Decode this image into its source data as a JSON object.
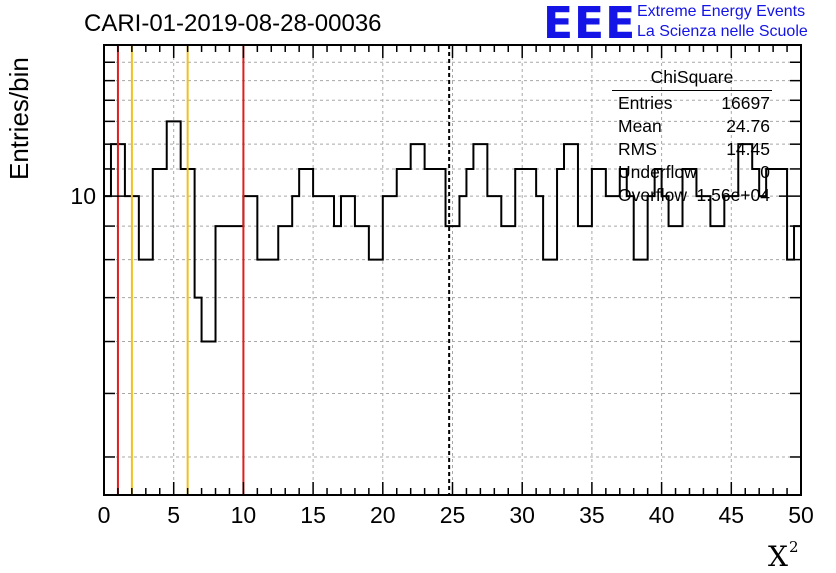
{
  "title": "CARI-01-2019-08-28-00036",
  "logo": {
    "mark": "EEE",
    "line1": "Extreme Energy Events",
    "line2": "La Scienza nelle Scuole"
  },
  "stats": {
    "title": "ChiSquare",
    "rows": [
      {
        "key": "Entries",
        "value": "16697"
      },
      {
        "key": "Mean",
        "value": "24.76"
      },
      {
        "key": "RMS",
        "value": "14.45"
      },
      {
        "key": "Underflow",
        "value": "0"
      },
      {
        "key": "Overflow",
        "value": "1.56e+04"
      }
    ]
  },
  "colors": {
    "red_line": "#e01e1e",
    "yellow_line": "#f0c020",
    "mean_line": "#000000"
  },
  "chart_data": {
    "type": "histogram",
    "ylabel": "Entries/bin",
    "xlabel": "X",
    "xlabel_superscript": "2",
    "xlim": [
      0,
      50
    ],
    "ylim": [
      3.5,
      17
    ],
    "yscale": "log",
    "bin_width": 0.5,
    "x_ticks": [
      "0",
      "5",
      "10",
      "15",
      "20",
      "25",
      "30",
      "35",
      "40",
      "45",
      "50"
    ],
    "y_tick_labels": [
      {
        "value": 10,
        "label": "10"
      }
    ],
    "grid": true,
    "values": [
      10,
      12,
      12,
      10,
      10,
      8,
      8,
      11,
      11,
      13,
      13,
      11,
      11,
      7,
      6,
      6,
      9,
      9,
      9,
      9,
      10,
      10,
      8,
      8,
      8,
      9,
      9,
      10,
      11,
      11,
      10,
      10,
      10,
      9,
      10,
      10,
      9,
      9,
      8,
      8,
      10,
      10,
      11,
      11,
      12,
      12,
      11,
      11,
      11,
      9,
      9,
      10,
      11,
      12,
      12,
      10,
      10,
      9,
      9,
      11,
      11,
      11,
      10,
      8,
      8,
      11,
      12,
      12,
      9,
      9,
      11,
      11,
      10,
      10,
      11,
      10,
      8,
      8,
      10,
      11,
      10,
      9,
      9,
      11,
      11,
      10,
      10,
      9,
      9,
      10,
      10,
      12,
      12,
      11,
      10,
      11,
      11,
      11,
      8,
      9
    ],
    "vlines": [
      {
        "x": 1.0,
        "color": "red",
        "style": "solid"
      },
      {
        "x": 2.0,
        "color": "yellow",
        "style": "solid"
      },
      {
        "x": 6.0,
        "color": "yellow",
        "style": "solid"
      },
      {
        "x": 10.0,
        "color": "red",
        "style": "solid"
      },
      {
        "x": 24.76,
        "color": "black",
        "style": "dashed"
      }
    ]
  }
}
